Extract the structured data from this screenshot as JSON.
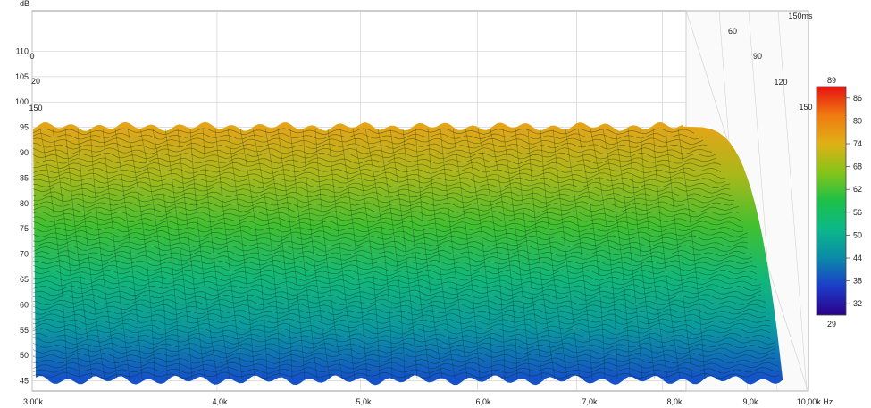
{
  "chart_data": {
    "type": "waterfall",
    "title": "",
    "ylabel": "dB",
    "x_unit": "Hz",
    "x_scale": "log",
    "xlim": [
      3000,
      10000
    ],
    "ylim": [
      43,
      118
    ],
    "x_ticks": [
      {
        "value": 3000,
        "label": "3,00k"
      },
      {
        "value": 4000,
        "label": "4,0k"
      },
      {
        "value": 5000,
        "label": "5,0k"
      },
      {
        "value": 6000,
        "label": "6,0k"
      },
      {
        "value": 7000,
        "label": "7,0k"
      },
      {
        "value": 8000,
        "label": "8,0k"
      },
      {
        "value": 9000,
        "label": "9,0k"
      },
      {
        "value": 10000,
        "label": "10,00k Hz"
      }
    ],
    "y_ticks": [
      45,
      50,
      55,
      60,
      65,
      70,
      75,
      80,
      85,
      90,
      95,
      100,
      105,
      110
    ],
    "time_unit": "ms",
    "time_ticks": [
      {
        "value": 0,
        "label": "0"
      },
      {
        "value": 20,
        "label": "20"
      },
      {
        "value": 150,
        "label": "150"
      },
      {
        "value": 60,
        "label": "60"
      },
      {
        "value": 90,
        "label": "90"
      },
      {
        "value": 120,
        "label": "120"
      },
      {
        "value": 150,
        "label": "150"
      },
      {
        "value": 150,
        "label": "150ms"
      }
    ],
    "colorbar": {
      "min": 29,
      "max": 89,
      "ticks": [
        86,
        80,
        74,
        68,
        62,
        56,
        50,
        44,
        38,
        32
      ]
    },
    "surface": {
      "peak_level_db": 95.5,
      "floor_level_db": 45.5,
      "rolloff_start_hz": 9000,
      "rolloff_end_hz": 9600
    },
    "grid": true
  },
  "colors": {
    "background": "#ffffff",
    "grid": "#d4d4d4",
    "axis": "#9a9a9a",
    "surface_contour": "#0a2a18",
    "colormap": [
      "#2a008a",
      "#1c3cc8",
      "#0a8aa8",
      "#0cb88a",
      "#1cc048",
      "#86c418",
      "#e0b016",
      "#f07a10",
      "#e81212"
    ]
  }
}
